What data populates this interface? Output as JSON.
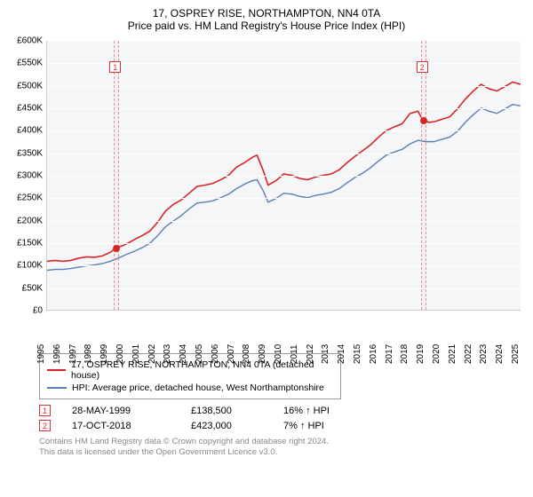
{
  "title": {
    "line1": "17, OSPREY RISE, NORTHAMPTON, NN4 0TA",
    "line2": "Price paid vs. HM Land Registry's House Price Index (HPI)"
  },
  "chart": {
    "type": "line",
    "background_color": "#f5f6f8",
    "grid_color": "#ffffff",
    "xlim": [
      1995,
      2025
    ],
    "ylim": [
      0,
      600000
    ],
    "ytick_step": 50000,
    "yticks_fmt": [
      "£0",
      "£50K",
      "£100K",
      "£150K",
      "£200K",
      "£250K",
      "£300K",
      "£350K",
      "£400K",
      "£450K",
      "£500K",
      "£550K",
      "£600K"
    ],
    "xticks": [
      1995,
      1996,
      1997,
      1998,
      1999,
      2000,
      2001,
      2002,
      2003,
      2004,
      2005,
      2006,
      2007,
      2008,
      2009,
      2010,
      2011,
      2012,
      2013,
      2014,
      2015,
      2016,
      2017,
      2018,
      2019,
      2020,
      2021,
      2022,
      2023,
      2024,
      2025
    ],
    "series": [
      {
        "name": "17, OSPREY RISE, NORTHAMPTON, NN4 0TA (detached house)",
        "color": "#d92424",
        "width": 1.6,
        "points": [
          [
            1995.0,
            108000
          ],
          [
            1995.5,
            110000
          ],
          [
            1996.0,
            108000
          ],
          [
            1996.5,
            110000
          ],
          [
            1997.0,
            115000
          ],
          [
            1997.5,
            118000
          ],
          [
            1998.0,
            117000
          ],
          [
            1998.5,
            120000
          ],
          [
            1999.0,
            128000
          ],
          [
            1999.4,
            138500
          ],
          [
            1999.8,
            143000
          ],
          [
            2000.2,
            150000
          ],
          [
            2000.6,
            158000
          ],
          [
            2001.0,
            165000
          ],
          [
            2001.5,
            175000
          ],
          [
            2002.0,
            195000
          ],
          [
            2002.5,
            220000
          ],
          [
            2003.0,
            235000
          ],
          [
            2003.5,
            245000
          ],
          [
            2004.0,
            260000
          ],
          [
            2004.5,
            275000
          ],
          [
            2005.0,
            278000
          ],
          [
            2005.5,
            282000
          ],
          [
            2006.0,
            290000
          ],
          [
            2006.5,
            300000
          ],
          [
            2007.0,
            318000
          ],
          [
            2007.5,
            328000
          ],
          [
            2008.0,
            340000
          ],
          [
            2008.3,
            345000
          ],
          [
            2008.7,
            310000
          ],
          [
            2009.0,
            278000
          ],
          [
            2009.5,
            288000
          ],
          [
            2010.0,
            303000
          ],
          [
            2010.5,
            300000
          ],
          [
            2011.0,
            293000
          ],
          [
            2011.5,
            290000
          ],
          [
            2012.0,
            296000
          ],
          [
            2012.5,
            300000
          ],
          [
            2013.0,
            303000
          ],
          [
            2013.5,
            312000
          ],
          [
            2014.0,
            328000
          ],
          [
            2014.5,
            342000
          ],
          [
            2015.0,
            355000
          ],
          [
            2015.5,
            368000
          ],
          [
            2016.0,
            385000
          ],
          [
            2016.5,
            400000
          ],
          [
            2017.0,
            408000
          ],
          [
            2017.5,
            415000
          ],
          [
            2018.0,
            438000
          ],
          [
            2018.5,
            443000
          ],
          [
            2018.8,
            423000
          ],
          [
            2019.2,
            418000
          ],
          [
            2019.6,
            420000
          ],
          [
            2020.0,
            425000
          ],
          [
            2020.5,
            430000
          ],
          [
            2021.0,
            448000
          ],
          [
            2021.5,
            470000
          ],
          [
            2022.0,
            488000
          ],
          [
            2022.5,
            503000
          ],
          [
            2023.0,
            493000
          ],
          [
            2023.5,
            488000
          ],
          [
            2024.0,
            498000
          ],
          [
            2024.5,
            508000
          ],
          [
            2025.0,
            503000
          ]
        ]
      },
      {
        "name": "HPI: Average price, detached house, West Northamptonshire",
        "color": "#5b7fb5",
        "width": 1.4,
        "points": [
          [
            1995.0,
            88000
          ],
          [
            1995.5,
            90000
          ],
          [
            1996.0,
            90000
          ],
          [
            1996.5,
            92000
          ],
          [
            1997.0,
            95000
          ],
          [
            1997.5,
            98000
          ],
          [
            1998.0,
            100000
          ],
          [
            1998.5,
            103000
          ],
          [
            1999.0,
            108000
          ],
          [
            1999.5,
            115000
          ],
          [
            2000.0,
            123000
          ],
          [
            2000.5,
            130000
          ],
          [
            2001.0,
            138000
          ],
          [
            2001.5,
            148000
          ],
          [
            2002.0,
            165000
          ],
          [
            2002.5,
            185000
          ],
          [
            2003.0,
            198000
          ],
          [
            2003.5,
            210000
          ],
          [
            2004.0,
            225000
          ],
          [
            2004.5,
            238000
          ],
          [
            2005.0,
            240000
          ],
          [
            2005.5,
            243000
          ],
          [
            2006.0,
            250000
          ],
          [
            2006.5,
            258000
          ],
          [
            2007.0,
            270000
          ],
          [
            2007.5,
            280000
          ],
          [
            2008.0,
            288000
          ],
          [
            2008.3,
            290000
          ],
          [
            2008.7,
            265000
          ],
          [
            2009.0,
            240000
          ],
          [
            2009.5,
            248000
          ],
          [
            2010.0,
            260000
          ],
          [
            2010.5,
            258000
          ],
          [
            2011.0,
            253000
          ],
          [
            2011.5,
            250000
          ],
          [
            2012.0,
            255000
          ],
          [
            2012.5,
            258000
          ],
          [
            2013.0,
            262000
          ],
          [
            2013.5,
            270000
          ],
          [
            2014.0,
            283000
          ],
          [
            2014.5,
            295000
          ],
          [
            2015.0,
            305000
          ],
          [
            2015.5,
            317000
          ],
          [
            2016.0,
            332000
          ],
          [
            2016.5,
            345000
          ],
          [
            2017.0,
            352000
          ],
          [
            2017.5,
            358000
          ],
          [
            2018.0,
            370000
          ],
          [
            2018.5,
            378000
          ],
          [
            2019.0,
            375000
          ],
          [
            2019.5,
            375000
          ],
          [
            2020.0,
            380000
          ],
          [
            2020.5,
            385000
          ],
          [
            2021.0,
            398000
          ],
          [
            2021.5,
            418000
          ],
          [
            2022.0,
            435000
          ],
          [
            2022.5,
            450000
          ],
          [
            2023.0,
            443000
          ],
          [
            2023.5,
            438000
          ],
          [
            2024.0,
            448000
          ],
          [
            2024.5,
            458000
          ],
          [
            2025.0,
            455000
          ]
        ]
      }
    ],
    "sale_markers": [
      {
        "n": "1",
        "x": 1999.4,
        "y": 138500
      },
      {
        "n": "2",
        "x": 2018.8,
        "y": 423000
      }
    ],
    "marker_box_color": "#e03030",
    "dot_color": "#d92424"
  },
  "legend": {
    "items": [
      {
        "color": "#d92424",
        "label": "17, OSPREY RISE, NORTHAMPTON, NN4 0TA (detached house)"
      },
      {
        "color": "#5b7fb5",
        "label": "HPI: Average price, detached house, West Northamptonshire"
      }
    ]
  },
  "transactions": [
    {
      "n": "1",
      "date": "28-MAY-1999",
      "price": "£138,500",
      "delta": "16% ↑ HPI"
    },
    {
      "n": "2",
      "date": "17-OCT-2018",
      "price": "£423,000",
      "delta": "7% ↑ HPI"
    }
  ],
  "footer": {
    "line1": "Contains HM Land Registry data © Crown copyright and database right 2024.",
    "line2": "This data is licensed under the Open Government Licence v3.0."
  }
}
